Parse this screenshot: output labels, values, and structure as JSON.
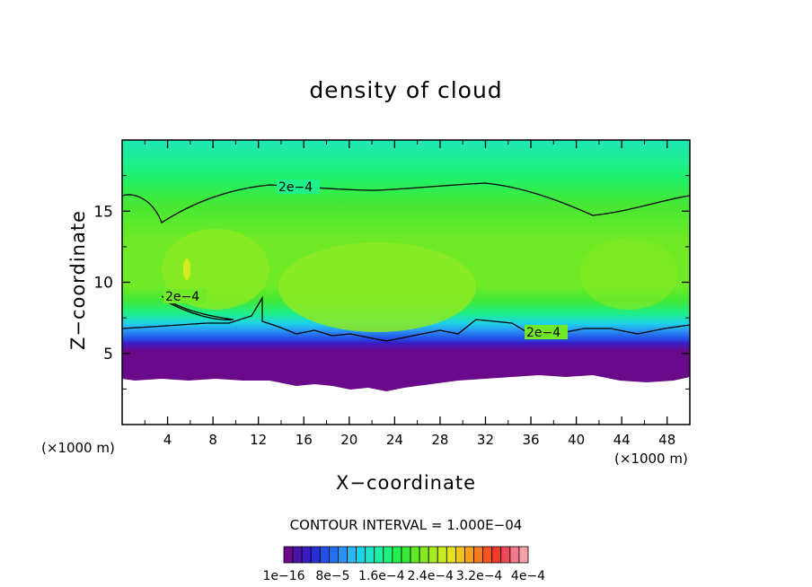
{
  "chart_data": {
    "type": "contour",
    "title": "density of cloud",
    "xlabel": "X−coordinate",
    "ylabel": "Z−coordinate",
    "x_unit": "(×1000 m)",
    "xlim": [
      0,
      50
    ],
    "ylim": [
      0,
      20
    ],
    "x_ticks": [
      4,
      8,
      12,
      16,
      20,
      24,
      28,
      32,
      36,
      40,
      44,
      48
    ],
    "y_ticks": [
      5,
      10,
      15
    ],
    "contour_interval_text": "CONTOUR INTERVAL = 1.000E−04",
    "contour_line_label": "2e−4",
    "contour_line_level": 0.0002,
    "colorbar": {
      "colors": [
        "#6a0a8a",
        "#4b12a8",
        "#3a1ac2",
        "#2a2ed8",
        "#2250e8",
        "#2270f0",
        "#2a92f4",
        "#2cb6f4",
        "#1ed2ea",
        "#1ee6cc",
        "#1ef0a6",
        "#1ef27a",
        "#24f050",
        "#3ae838",
        "#60e82a",
        "#86ea22",
        "#a6ec1e",
        "#c6ec1e",
        "#e4e21e",
        "#f2c41e",
        "#f6a01e",
        "#f67a1e",
        "#f4561e",
        "#f03a2a",
        "#ee4a5a",
        "#f27a8a",
        "#f6a0a8"
      ],
      "tick_labels": [
        "1e−16",
        "8e−5",
        "1.6e−4",
        "2.4e−4",
        "3.2e−4",
        "4e−4"
      ],
      "tick_values": [
        1e-16,
        8e-05,
        0.00016,
        0.00024,
        0.00032,
        0.0004
      ]
    },
    "legend_position": "bottom"
  }
}
